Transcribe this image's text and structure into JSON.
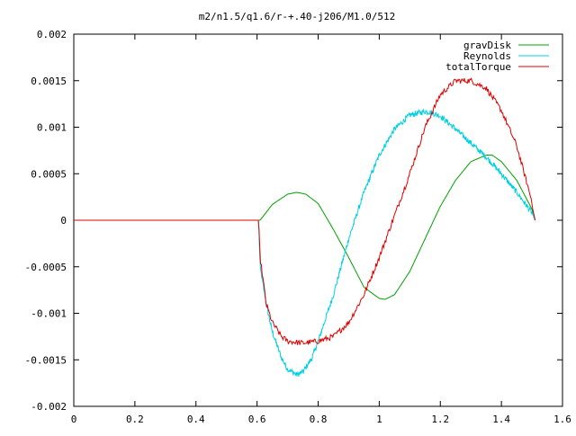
{
  "chart_data": {
    "type": "line",
    "title": "m2/n1.5/q1.6/r-+.40-j206/M1.0/512",
    "xlabel": "",
    "ylabel": "",
    "xlim": [
      0,
      1.6
    ],
    "ylim": [
      -0.002,
      0.002
    ],
    "x_ticks": [
      "0",
      "0.2",
      "0.4",
      "0.6",
      "0.8",
      "1",
      "1.2",
      "1.4",
      "1.6"
    ],
    "y_ticks": [
      "-0.002",
      "-0.0015",
      "-0.001",
      "-0.0005",
      "0",
      "0.0005",
      "0.001",
      "0.0015",
      "0.002"
    ],
    "grid": false,
    "legend_position": "top-right",
    "series": [
      {
        "name": "gravDisk",
        "color": "#00a000",
        "noisy": false,
        "x": [
          0.6,
          0.61,
          0.65,
          0.7,
          0.73,
          0.76,
          0.8,
          0.85,
          0.9,
          0.95,
          1.0,
          1.02,
          1.05,
          1.1,
          1.15,
          1.2,
          1.25,
          1.3,
          1.35,
          1.37,
          1.4,
          1.45,
          1.5,
          1.51
        ],
        "values": [
          0,
          0,
          0.00017,
          0.00028,
          0.0003,
          0.00028,
          0.00018,
          -0.0001,
          -0.0004,
          -0.00072,
          -0.00084,
          -0.00085,
          -0.0008,
          -0.00055,
          -0.0002,
          0.00015,
          0.00043,
          0.00063,
          0.0007,
          0.0007,
          0.00063,
          0.00043,
          0.00012,
          0
        ]
      },
      {
        "name": "Reynolds",
        "color": "#00d0e0",
        "noisy": true,
        "x": [
          0.6,
          0.605,
          0.61,
          0.63,
          0.65,
          0.68,
          0.7,
          0.73,
          0.75,
          0.78,
          0.8,
          0.85,
          0.9,
          0.95,
          1.0,
          1.05,
          1.1,
          1.15,
          1.17,
          1.2,
          1.25,
          1.3,
          1.35,
          1.4,
          1.45,
          1.5,
          1.51
        ],
        "values": [
          0,
          0,
          -0.0005,
          -0.0009,
          -0.0012,
          -0.00148,
          -0.0016,
          -0.00166,
          -0.00163,
          -0.00148,
          -0.0013,
          -0.0008,
          -0.0002,
          0.0003,
          0.0007,
          0.00098,
          0.00113,
          0.00117,
          0.00116,
          0.00112,
          0.00098,
          0.00083,
          0.00068,
          0.0005,
          0.0003,
          8e-05,
          0
        ]
      },
      {
        "name": "totalTorque",
        "color": "#e00000",
        "noisy": true,
        "x": [
          0,
          0.6,
          0.605,
          0.61,
          0.63,
          0.65,
          0.68,
          0.7,
          0.75,
          0.8,
          0.85,
          0.9,
          0.95,
          1.0,
          1.05,
          1.1,
          1.15,
          1.2,
          1.25,
          1.3,
          1.35,
          1.4,
          1.45,
          1.5,
          1.51
        ],
        "values": [
          0,
          0,
          0,
          -0.0004,
          -0.0009,
          -0.0011,
          -0.00125,
          -0.0013,
          -0.00132,
          -0.0013,
          -0.00125,
          -0.0011,
          -0.0008,
          -0.0004,
          5e-05,
          0.0005,
          0.001,
          0.00135,
          0.0015,
          0.0015,
          0.00142,
          0.00118,
          0.0008,
          0.0002,
          0
        ]
      }
    ]
  }
}
